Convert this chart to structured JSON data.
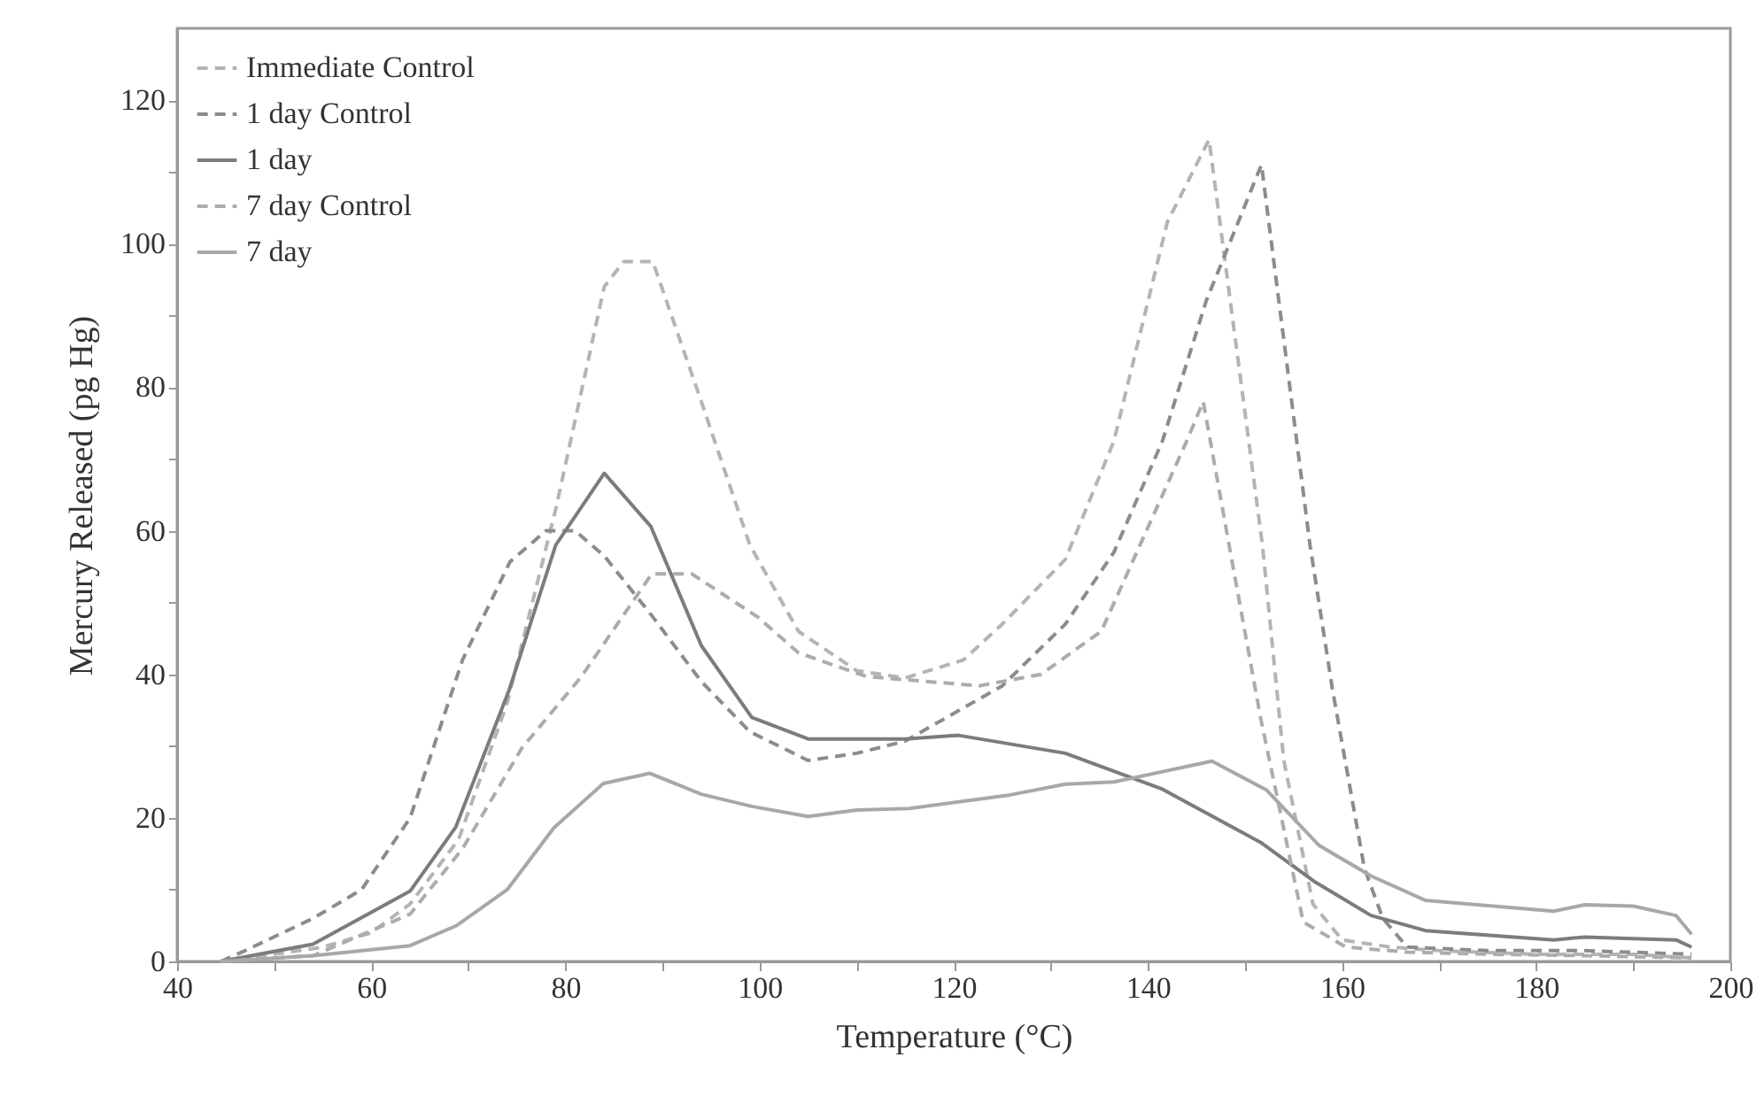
{
  "chart_data": {
    "type": "line",
    "xlabel": "Temperature (°C)",
    "ylabel": "Mercury Released (pg Hg)",
    "xlim": [
      40,
      200
    ],
    "ylim": [
      0,
      130
    ],
    "xticks": [
      40,
      {
        "value": 50,
        "label": null
      },
      60,
      {
        "value": 70,
        "label": null
      },
      80,
      {
        "value": 90,
        "label": null
      },
      100,
      {
        "value": 110,
        "label": null
      },
      120,
      {
        "value": 130,
        "label": null
      },
      140,
      {
        "value": 150,
        "label": null
      },
      160,
      {
        "value": 170,
        "label": null
      },
      180,
      {
        "value": 190,
        "label": null
      },
      200
    ],
    "yticks": [
      0,
      {
        "value": 10,
        "label": null
      },
      20,
      {
        "value": 30,
        "label": null
      },
      40,
      {
        "value": 50,
        "label": null
      },
      60,
      {
        "value": 70,
        "label": null
      },
      80,
      {
        "value": 90,
        "label": null
      },
      100,
      {
        "value": 110,
        "label": null
      },
      120
    ],
    "legend": "top left",
    "grid": false,
    "series": [
      {
        "name": "Immediate Control",
        "color": "#b4b4b4",
        "line_style": "dashed",
        "x": [
          44.5,
          50,
          55,
          60,
          64,
          69,
          74,
          79,
          84,
          86,
          89,
          94,
          99,
          104,
          110,
          115,
          121,
          125,
          131.5,
          136.5,
          142,
          146.3,
          151.8,
          154,
          157,
          160,
          165,
          170,
          180,
          190,
          196
        ],
        "values": [
          0,
          1,
          2,
          4,
          8,
          17,
          36,
          63,
          94,
          97.5,
          97.5,
          78,
          58,
          46,
          40.5,
          39.5,
          42,
          47,
          56,
          72.5,
          103,
          114.5,
          58,
          28,
          8,
          3,
          2,
          1.5,
          1,
          1,
          0.5
        ]
      },
      {
        "name": "1 day Control",
        "color": "#8c8c8c",
        "line_style": "dashed",
        "x": [
          44.5,
          47,
          54,
          59,
          64,
          69.4,
          74.3,
          78,
          81,
          84,
          89,
          94,
          99,
          105,
          110,
          115,
          125,
          131.5,
          136.5,
          141.5,
          146,
          151.7,
          156.7,
          159,
          162.3,
          164.2,
          166.7,
          175,
          185,
          196
        ],
        "values": [
          0,
          1.5,
          6,
          10,
          20,
          42,
          55.7,
          60,
          60,
          56.5,
          48,
          39,
          32,
          28,
          29,
          30.7,
          38.4,
          47,
          57,
          72.5,
          92,
          111,
          58,
          38,
          13,
          6,
          2,
          1.5,
          1.5,
          1
        ]
      },
      {
        "name": "1 day",
        "color": "#7c7c7c",
        "line_style": "solid",
        "x": [
          44.5,
          54,
          64,
          68.7,
          74.2,
          79,
          84,
          88.8,
          94,
          99.2,
          105,
          115,
          120.5,
          131.5,
          141.5,
          151.6,
          157.3,
          163,
          168.6,
          181.8,
          185,
          194.4,
          196
        ],
        "values": [
          0,
          2.4,
          9.8,
          18.7,
          37.8,
          58,
          68,
          60.6,
          44,
          34,
          31,
          31,
          31.5,
          29,
          24,
          16.6,
          11,
          6.4,
          4.3,
          3,
          3.4,
          3,
          2
        ]
      },
      {
        "name": "7 day Control",
        "color": "#acacac",
        "line_style": "dashed",
        "x": [
          44.5,
          54,
          64,
          69.4,
          75.5,
          81.6,
          88.9,
          93,
          99.8,
          104,
          111,
          122.6,
          129,
          135.2,
          144,
          145.7,
          148.5,
          151.6,
          156,
          160.4,
          166.7,
          175,
          185,
          196
        ],
        "values": [
          0,
          0.8,
          6.6,
          15.7,
          29.7,
          39.6,
          54,
          54,
          48,
          43,
          39.7,
          38.4,
          40,
          46,
          72.5,
          78,
          57,
          34,
          5.5,
          2,
          1.3,
          1,
          0.8,
          0.5
        ]
      },
      {
        "name": "7 day",
        "color": "#a8a8a8",
        "line_style": "solid",
        "x": [
          44.5,
          54,
          64,
          68.8,
          74,
          78.8,
          83.9,
          88.7,
          94,
          99.2,
          105,
          110,
          115.4,
          125.8,
          131.5,
          136.5,
          146.6,
          152.2,
          157.6,
          163,
          168.6,
          181.8,
          185,
          190,
          194.4,
          196
        ],
        "values": [
          0,
          0.8,
          2.2,
          5,
          10,
          18.6,
          24.8,
          26.2,
          23.3,
          21.6,
          20.2,
          21.1,
          21.3,
          23.2,
          24.7,
          25,
          27.9,
          23.9,
          16.2,
          11.9,
          8.5,
          7,
          7.9,
          7.7,
          6.4,
          3.8
        ]
      }
    ]
  }
}
